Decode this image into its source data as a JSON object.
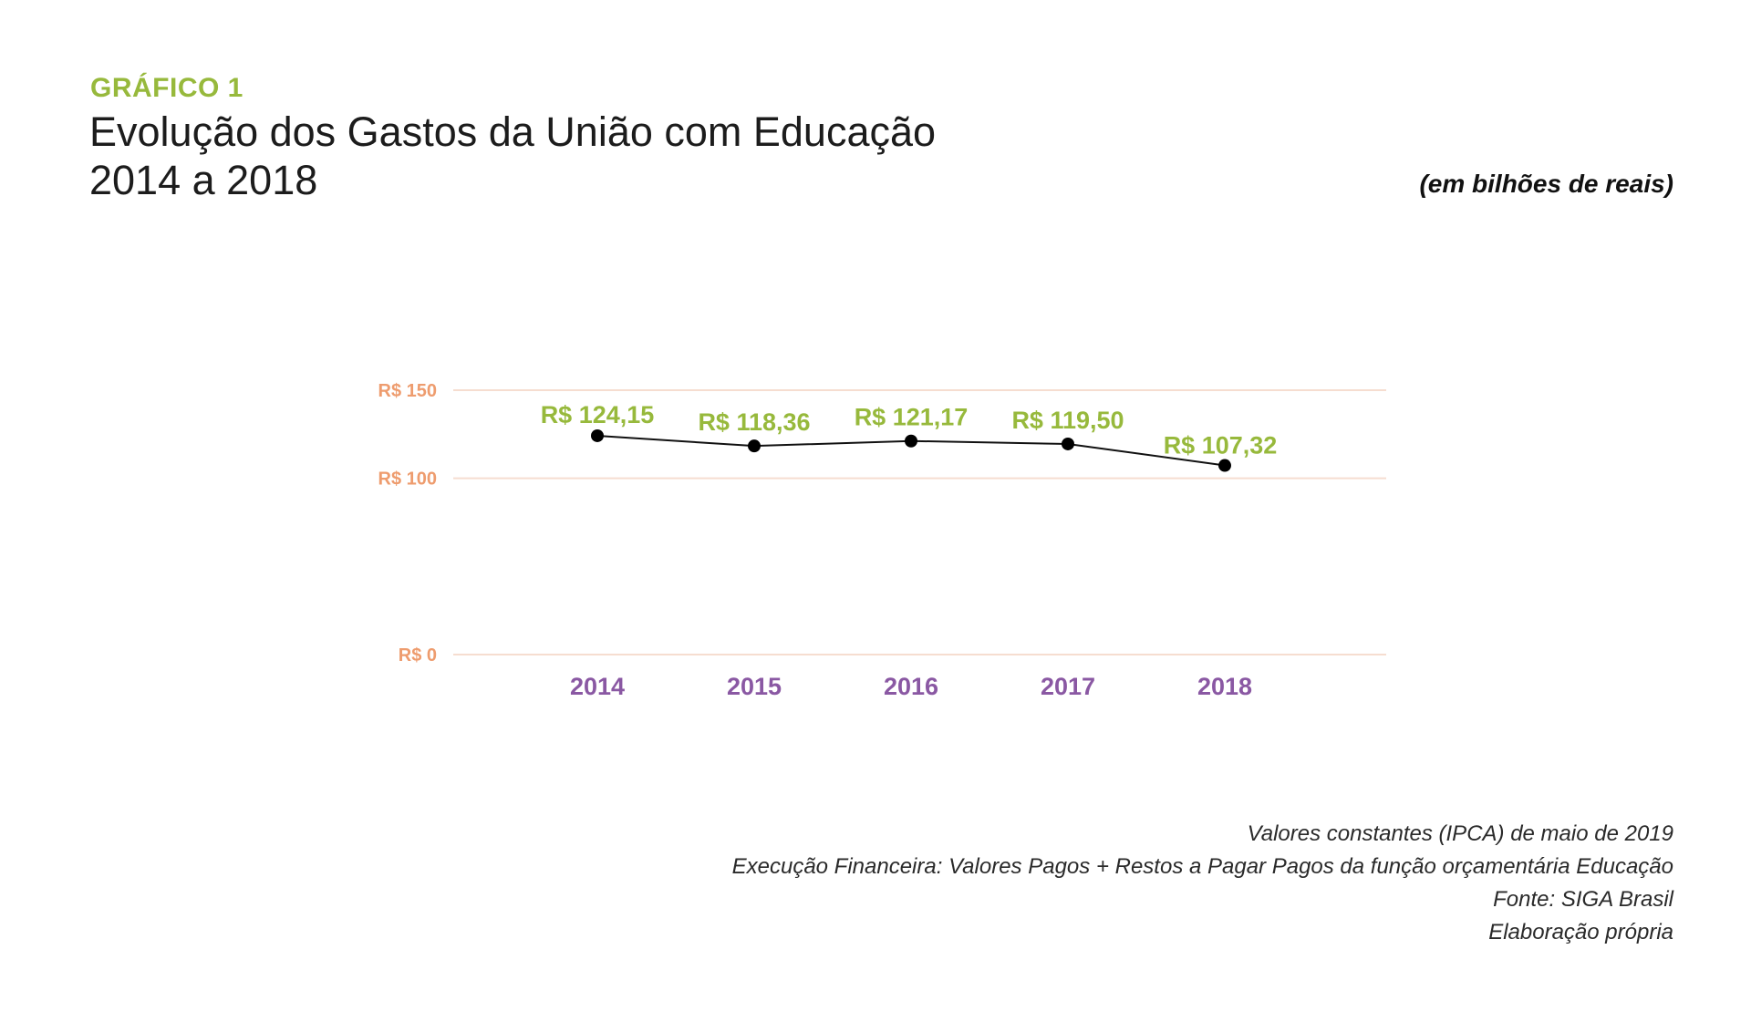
{
  "header": {
    "kicker": "GRÁFICO 1",
    "title_line1": "Evolução dos Gastos da União com Educação",
    "title_line2": "2014 a 2018",
    "unit": "(em bilhões de reais)"
  },
  "chart_data": {
    "type": "line",
    "categories": [
      "2014",
      "2015",
      "2016",
      "2017",
      "2018"
    ],
    "values": [
      124.15,
      118.36,
      121.17,
      119.5,
      107.32
    ],
    "data_labels": [
      "R$ 124,15",
      "R$ 118,36",
      "R$ 121,17",
      "R$ 119,50",
      "R$ 107,32"
    ],
    "yticks": [
      {
        "value": 150,
        "label": "R$ 150"
      },
      {
        "value": 100,
        "label": "R$ 100"
      },
      {
        "value": 0,
        "label": "R$ 0"
      }
    ],
    "ylim": [
      0,
      150
    ],
    "grid": true,
    "colors": {
      "grid": "#f6ddd0",
      "ytick": "#ee9c6e",
      "xtick": "#8a58a3",
      "data_label": "#97b93c",
      "line": "#111111",
      "marker": "#000000"
    }
  },
  "footer": {
    "notes": [
      "Valores constantes (IPCA) de maio de 2019",
      "Execução Financeira: Valores Pagos + Restos a Pagar Pagos da função orçamentária Educação",
      "Fonte: SIGA Brasil",
      "Elaboração própria"
    ]
  }
}
